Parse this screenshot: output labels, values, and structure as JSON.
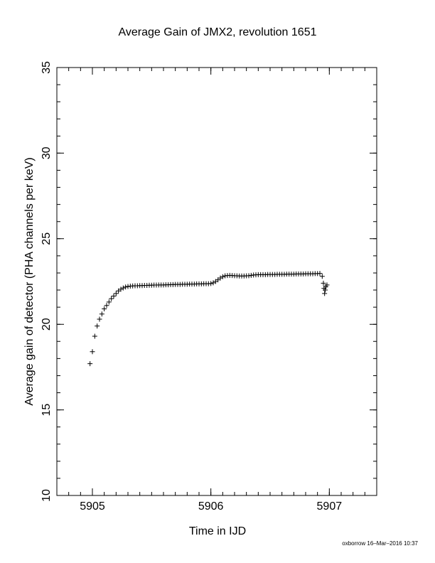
{
  "chart_data": {
    "type": "scatter",
    "title": "Average Gain of JMX2, revolution 1651",
    "x_label": "Time in IJD",
    "y_label": "Average gain of detector (PHA channels per keV)",
    "footer": "oxborrow 16–Mar–2016 10:37",
    "xlim": [
      5904.7,
      5907.4
    ],
    "ylim": [
      10,
      35
    ],
    "xticks": [
      5905,
      5906,
      5907
    ],
    "yticks": [
      10,
      15,
      20,
      25,
      30,
      35
    ],
    "xminorticks": [
      5904.7,
      5904.8,
      5904.9,
      5905.0,
      5905.1,
      5905.2,
      5905.3,
      5905.4,
      5905.5,
      5905.6,
      5905.7,
      5905.8,
      5905.9,
      5906.0,
      5906.1,
      5906.2,
      5906.3,
      5906.4,
      5906.5,
      5906.6,
      5906.7,
      5906.8,
      5906.9,
      5907.0,
      5907.1,
      5907.2,
      5907.3,
      5907.4
    ],
    "yminorticks": [
      10,
      11,
      12,
      13,
      14,
      15,
      16,
      17,
      18,
      19,
      20,
      21,
      22,
      23,
      24,
      25,
      26,
      27,
      28,
      29,
      30,
      31,
      32,
      33,
      34,
      35
    ],
    "marker": "+",
    "color": "#000000",
    "x": [
      5904.98,
      5905.0,
      5905.02,
      5905.04,
      5905.06,
      5905.08,
      5905.1,
      5905.12,
      5905.14,
      5905.16,
      5905.18,
      5905.2,
      5905.22,
      5905.24,
      5905.26,
      5905.28,
      5905.3,
      5905.32,
      5905.34,
      5905.36,
      5905.38,
      5905.4,
      5905.42,
      5905.44,
      5905.46,
      5905.48,
      5905.5,
      5905.52,
      5905.54,
      5905.56,
      5905.58,
      5905.6,
      5905.62,
      5905.64,
      5905.66,
      5905.68,
      5905.7,
      5905.72,
      5905.74,
      5905.76,
      5905.78,
      5905.8,
      5905.82,
      5905.84,
      5905.86,
      5905.88,
      5905.9,
      5905.92,
      5905.94,
      5905.96,
      5905.98,
      5906.0,
      5906.02,
      5906.04,
      5906.06,
      5906.08,
      5906.1,
      5906.12,
      5906.14,
      5906.16,
      5906.18,
      5906.2,
      5906.22,
      5906.24,
      5906.26,
      5906.28,
      5906.3,
      5906.32,
      5906.34,
      5906.36,
      5906.38,
      5906.4,
      5906.42,
      5906.44,
      5906.46,
      5906.48,
      5906.5,
      5906.52,
      5906.54,
      5906.56,
      5906.58,
      5906.6,
      5906.62,
      5906.64,
      5906.66,
      5906.68,
      5906.7,
      5906.72,
      5906.74,
      5906.76,
      5906.78,
      5906.8,
      5906.82,
      5906.84,
      5906.86,
      5906.88,
      5906.9,
      5906.92,
      5906.94,
      5906.95,
      5906.955,
      5906.96,
      5906.965,
      5906.97,
      5906.98
    ],
    "values": [
      17.7,
      18.4,
      19.3,
      19.9,
      20.3,
      20.6,
      20.9,
      21.1,
      21.3,
      21.5,
      21.65,
      21.8,
      21.95,
      22.05,
      22.12,
      22.18,
      22.21,
      22.23,
      22.24,
      22.25,
      22.25,
      22.26,
      22.26,
      22.27,
      22.27,
      22.28,
      22.28,
      22.29,
      22.29,
      22.3,
      22.3,
      22.3,
      22.31,
      22.31,
      22.32,
      22.32,
      22.33,
      22.33,
      22.33,
      22.34,
      22.34,
      22.34,
      22.35,
      22.35,
      22.35,
      22.36,
      22.36,
      22.36,
      22.37,
      22.37,
      22.37,
      22.38,
      22.42,
      22.5,
      22.6,
      22.7,
      22.78,
      22.83,
      22.85,
      22.86,
      22.85,
      22.84,
      22.83,
      22.82,
      22.82,
      22.82,
      22.83,
      22.84,
      22.86,
      22.88,
      22.89,
      22.9,
      22.9,
      22.9,
      22.9,
      22.91,
      22.91,
      22.91,
      22.91,
      22.92,
      22.92,
      22.92,
      22.92,
      22.93,
      22.93,
      22.93,
      22.93,
      22.94,
      22.94,
      22.94,
      22.94,
      22.95,
      22.95,
      22.95,
      22.95,
      22.96,
      22.96,
      22.97,
      22.8,
      22.4,
      22.1,
      21.8,
      22.0,
      22.2,
      22.3
    ]
  }
}
